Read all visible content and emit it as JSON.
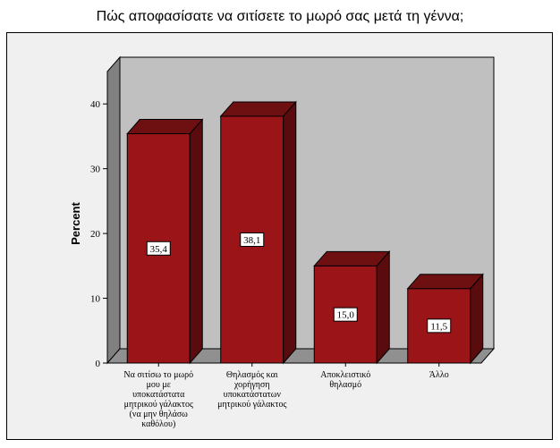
{
  "chart_data": {
    "type": "bar",
    "title": "Πώς αποφασίσατε να σιτίσετε το μωρό σας  μετά τη γέννα;",
    "ylabel": "Percent",
    "xlabel": "",
    "ylim": [
      0,
      45
    ],
    "yticks": [
      0,
      10,
      20,
      30,
      40
    ],
    "grid": false,
    "categories": [
      [
        "Να σιτίσω το μωρό",
        "μου με",
        "υποκατάστατα",
        "μητρικού γάλακτος",
        "(να μην θηλάσω",
        "καθόλου)"
      ],
      [
        "Θηλασμός και",
        "χορήγηση",
        "υποκατάστατων",
        "μητρικού γάλακτος"
      ],
      [
        "Αποκλειστικό",
        "θηλασμό"
      ],
      [
        "Άλλο"
      ]
    ],
    "values": [
      35.4,
      38.1,
      15.0,
      11.5
    ],
    "data_labels": [
      "35,4",
      "38,1",
      "15,0",
      "11,5"
    ],
    "colors": {
      "bar_front": "#9b1518",
      "bar_side": "#5a0b0d",
      "bar_top": "#6e0f12",
      "wall": "#c0c0c0",
      "wall_side": "#808080",
      "floor": "#909090"
    }
  }
}
